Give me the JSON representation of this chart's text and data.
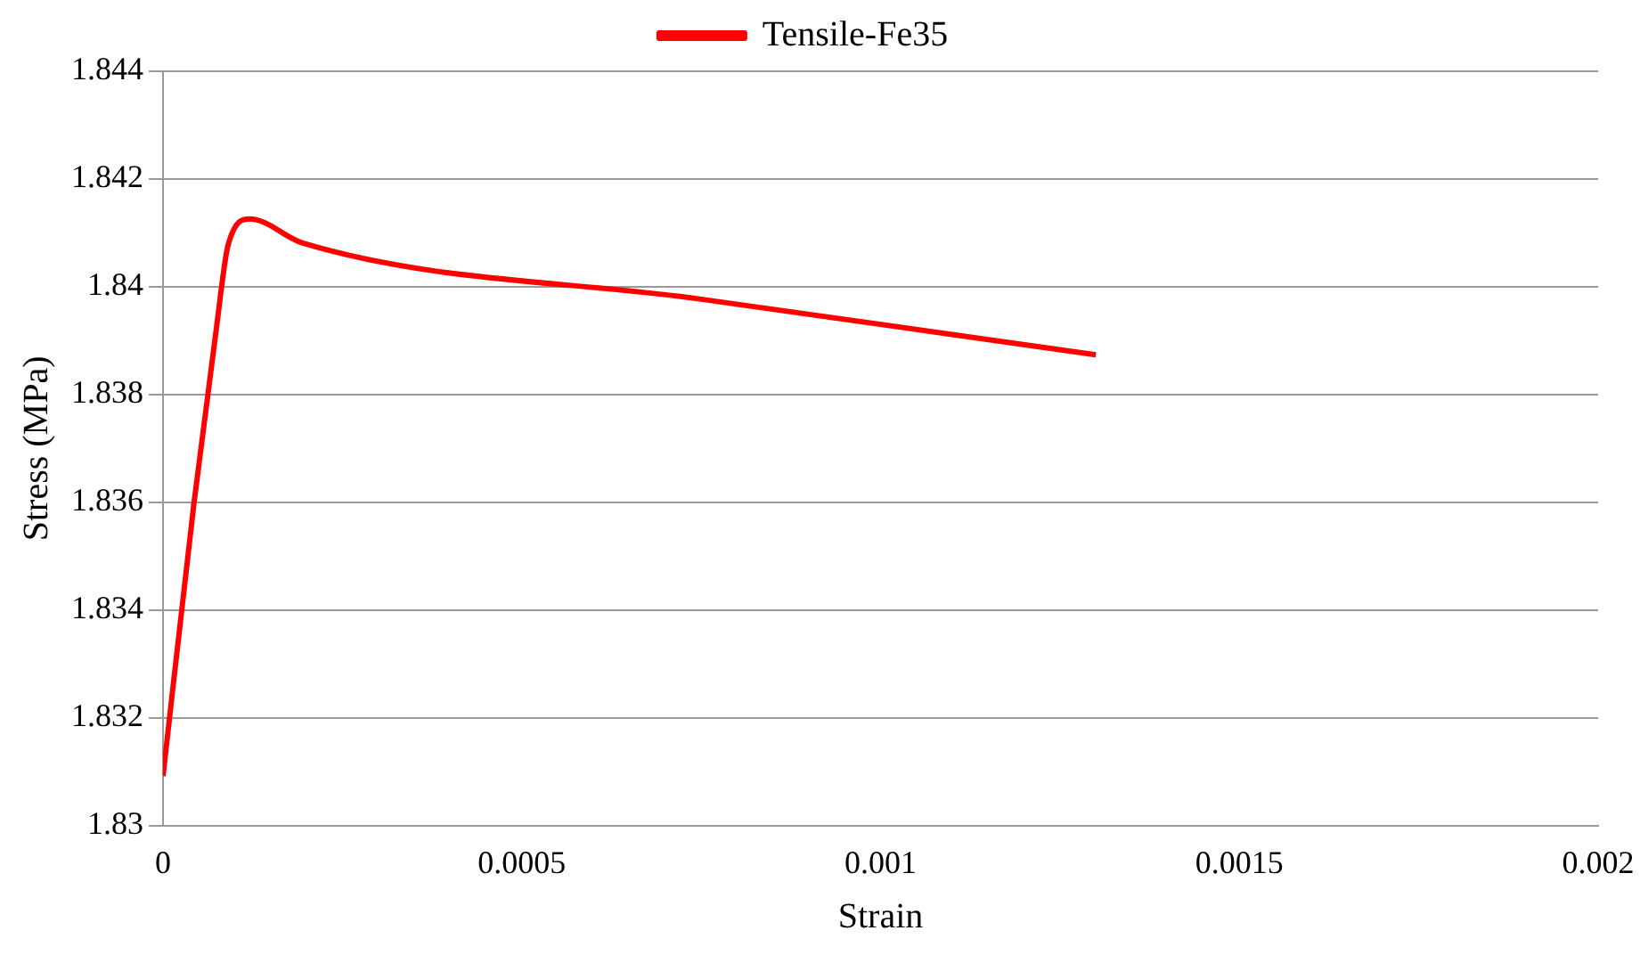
{
  "chart_data": {
    "type": "line",
    "xlabel": "Strain",
    "ylabel": "Stress (MPa)",
    "xlim": [
      0,
      0.002
    ],
    "xticks": [
      0,
      0.0005,
      0.001,
      0.0015,
      0.002
    ],
    "ylim": [
      1.83,
      1.844
    ],
    "yticks": [
      1.83,
      1.832,
      1.834,
      1.836,
      1.838,
      1.84,
      1.842,
      1.844
    ],
    "grid": "y",
    "legend": "top",
    "marker": "none",
    "line_style": "solid",
    "series": [
      {
        "name": "Tensile-Fe35",
        "color": "#ff0000",
        "x": [
          0,
          4.3e-05,
          7.4e-05,
          9.1e-05,
          0.000121,
          0.000195,
          0.00075,
          0.0013
        ],
        "values": [
          1.83092,
          1.83597,
          1.83919,
          1.84079,
          1.84126,
          1.84081,
          1.83977,
          1.83874
        ]
      }
    ]
  }
}
